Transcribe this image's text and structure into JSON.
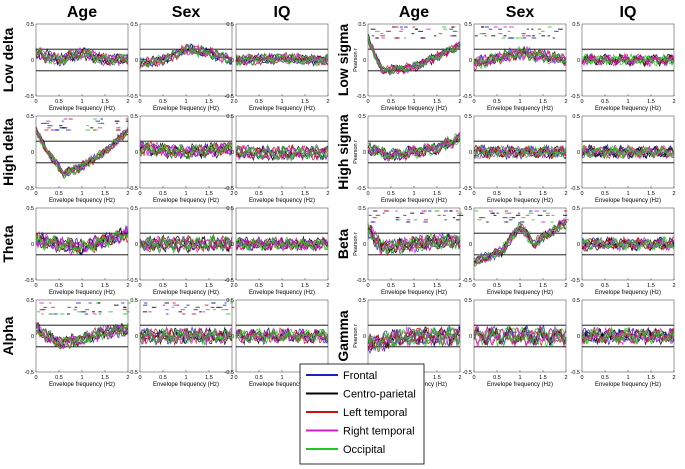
{
  "figure": {
    "columns": [
      "Age",
      "Sex",
      "IQ",
      "Age",
      "Sex",
      "IQ"
    ],
    "rows_left": [
      "Low delta",
      "High delta",
      "Theta",
      "Alpha"
    ],
    "rows_right": [
      "Low sigma",
      "High sigma",
      "Beta",
      "Gamma"
    ]
  },
  "chart_data": {
    "type": "line",
    "xlabel": "Envelope frequency (Hz)",
    "ylabel": "Pearson r",
    "xlim": [
      0,
      2
    ],
    "ylim": [
      -0.5,
      0.5
    ],
    "x_ticks": [
      "0",
      "0.5",
      "1",
      "1.5",
      "2"
    ],
    "y_ticks": [
      "0.5",
      "0",
      "-0.5"
    ],
    "significance_lines": [
      0.15,
      -0.15
    ],
    "grid": false,
    "legend_placement": "bottom-center",
    "series": [
      {
        "name": "Frontal",
        "color": "#1f1fc8"
      },
      {
        "name": "Centro-parietal",
        "color": "#000000"
      },
      {
        "name": "Left temporal",
        "color": "#d01010"
      },
      {
        "name": "Right temporal",
        "color": "#d020d0"
      },
      {
        "name": "Occipital",
        "color": "#20c820"
      }
    ],
    "panels": [
      {
        "band": "Low delta",
        "measure": "Age",
        "shape": [
          [
            0,
            0.1
          ],
          [
            0.5,
            0.0
          ],
          [
            1,
            0.1
          ],
          [
            1.5,
            0.0
          ],
          [
            2,
            0.02
          ]
        ],
        "noise": 0.08,
        "marks": false
      },
      {
        "band": "Low delta",
        "measure": "Sex",
        "shape": [
          [
            0,
            -0.05
          ],
          [
            0.5,
            0.0
          ],
          [
            1,
            0.15
          ],
          [
            1.5,
            0.1
          ],
          [
            2,
            0.0
          ]
        ],
        "noise": 0.07,
        "marks": false
      },
      {
        "band": "Low delta",
        "measure": "IQ",
        "shape": [
          [
            0,
            0.0
          ],
          [
            1,
            0.02
          ],
          [
            2,
            0.0
          ]
        ],
        "noise": 0.07,
        "marks": false
      },
      {
        "band": "High delta",
        "measure": "Age",
        "shape": [
          [
            0,
            0.3
          ],
          [
            0.25,
            0.0
          ],
          [
            0.6,
            -0.3
          ],
          [
            1.0,
            -0.2
          ],
          [
            1.5,
            0.0
          ],
          [
            2,
            0.3
          ]
        ],
        "noise": 0.06,
        "marks": true
      },
      {
        "band": "High delta",
        "measure": "Sex",
        "shape": [
          [
            0,
            0.05
          ],
          [
            1,
            0.0
          ],
          [
            2,
            0.05
          ]
        ],
        "noise": 0.09,
        "marks": false
      },
      {
        "band": "High delta",
        "measure": "IQ",
        "shape": [
          [
            0,
            0.0
          ],
          [
            1,
            -0.02
          ],
          [
            2,
            0.0
          ]
        ],
        "noise": 0.09,
        "marks": false
      },
      {
        "band": "Theta",
        "measure": "Age",
        "shape": [
          [
            0,
            0.05
          ],
          [
            1,
            -0.05
          ],
          [
            2,
            0.15
          ]
        ],
        "noise": 0.1,
        "marks": false
      },
      {
        "band": "Theta",
        "measure": "Sex",
        "shape": [
          [
            0,
            0.0
          ],
          [
            1,
            0.0
          ],
          [
            2,
            0.0
          ]
        ],
        "noise": 0.1,
        "marks": false
      },
      {
        "band": "Theta",
        "measure": "IQ",
        "shape": [
          [
            0,
            0.0
          ],
          [
            1,
            0.0
          ],
          [
            2,
            0.0
          ]
        ],
        "noise": 0.08,
        "marks": false
      },
      {
        "band": "Alpha",
        "measure": "Age",
        "shape": [
          [
            0,
            0.1
          ],
          [
            0.5,
            -0.1
          ],
          [
            1,
            -0.05
          ],
          [
            1.5,
            0.05
          ],
          [
            2,
            0.1
          ]
        ],
        "noise": 0.09,
        "marks": true
      },
      {
        "band": "Alpha",
        "measure": "Sex",
        "shape": [
          [
            0,
            0.0
          ],
          [
            1,
            0.0
          ],
          [
            2,
            0.0
          ]
        ],
        "noise": 0.1,
        "marks": true
      },
      {
        "band": "Alpha",
        "measure": "IQ",
        "shape": [
          [
            0,
            0.0
          ],
          [
            1,
            0.0
          ],
          [
            2,
            0.0
          ]
        ],
        "noise": 0.09,
        "marks": false
      },
      {
        "band": "Low sigma",
        "measure": "Age",
        "shape": [
          [
            0,
            0.3
          ],
          [
            0.3,
            -0.15
          ],
          [
            1.0,
            -0.1
          ],
          [
            2,
            0.2
          ]
        ],
        "noise": 0.06,
        "marks": true
      },
      {
        "band": "Low sigma",
        "measure": "Sex",
        "shape": [
          [
            0,
            -0.05
          ],
          [
            1,
            0.1
          ],
          [
            2,
            0.0
          ]
        ],
        "noise": 0.08,
        "marks": true
      },
      {
        "band": "Low sigma",
        "measure": "IQ",
        "shape": [
          [
            0,
            0.0
          ],
          [
            1,
            0.0
          ],
          [
            2,
            0.0
          ]
        ],
        "noise": 0.07,
        "marks": false
      },
      {
        "band": "High sigma",
        "measure": "Age",
        "shape": [
          [
            0,
            0.05
          ],
          [
            0.5,
            -0.05
          ],
          [
            1.5,
            0.05
          ],
          [
            2,
            0.2
          ]
        ],
        "noise": 0.08,
        "marks": false
      },
      {
        "band": "High sigma",
        "measure": "Sex",
        "shape": [
          [
            0,
            0.0
          ],
          [
            1,
            0.0
          ],
          [
            2,
            0.0
          ]
        ],
        "noise": 0.08,
        "marks": false
      },
      {
        "band": "High sigma",
        "measure": "IQ",
        "shape": [
          [
            0,
            0.0
          ],
          [
            1,
            0.0
          ],
          [
            2,
            0.0
          ]
        ],
        "noise": 0.08,
        "marks": false
      },
      {
        "band": "Beta",
        "measure": "Age",
        "shape": [
          [
            0,
            0.2
          ],
          [
            0.3,
            -0.05
          ],
          [
            1,
            0.0
          ],
          [
            2,
            0.05
          ]
        ],
        "noise": 0.1,
        "marks": true
      },
      {
        "band": "Beta",
        "measure": "Sex",
        "shape": [
          [
            0,
            -0.25
          ],
          [
            0.6,
            -0.1
          ],
          [
            1,
            0.25
          ],
          [
            1.3,
            0.0
          ],
          [
            2,
            0.3
          ]
        ],
        "noise": 0.07,
        "marks": true
      },
      {
        "band": "Beta",
        "measure": "IQ",
        "shape": [
          [
            0,
            0.0
          ],
          [
            1,
            0.0
          ],
          [
            2,
            0.0
          ]
        ],
        "noise": 0.08,
        "marks": false
      },
      {
        "band": "Gamma",
        "measure": "Age",
        "shape": [
          [
            0,
            -0.1
          ],
          [
            1,
            0.0
          ],
          [
            2,
            0.0
          ]
        ],
        "noise": 0.12,
        "marks": false
      },
      {
        "band": "Gamma",
        "measure": "Sex",
        "shape": [
          [
            0,
            0.0
          ],
          [
            1,
            0.0
          ],
          [
            2,
            0.0
          ]
        ],
        "noise": 0.12,
        "marks": false
      },
      {
        "band": "Gamma",
        "measure": "IQ",
        "shape": [
          [
            0,
            0.0
          ],
          [
            1,
            0.0
          ],
          [
            2,
            0.0
          ]
        ],
        "noise": 0.1,
        "marks": false
      }
    ]
  }
}
